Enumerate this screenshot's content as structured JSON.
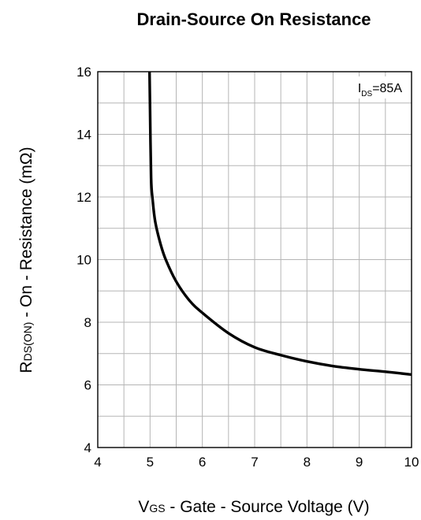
{
  "chart_data": {
    "type": "line",
    "title": "Drain-Source On Resistance",
    "xlabel": {
      "main": "V",
      "sub": "GS",
      "rest": " - Gate - Source Voltage (V)"
    },
    "ylabel": {
      "main": "R",
      "sub": "DS(ON)",
      "rest": " - On - Resistance (mΩ)"
    },
    "xlim": [
      4,
      10
    ],
    "ylim": [
      4,
      16
    ],
    "xticks": [
      "4",
      "5",
      "6",
      "7",
      "8",
      "9",
      "10"
    ],
    "yticks": [
      "4",
      "6",
      "8",
      "10",
      "12",
      "14",
      "16"
    ],
    "grid": true,
    "annotation": {
      "main": "I",
      "sub": "DS",
      "rest": "=85A",
      "position": "top-right"
    },
    "series": [
      {
        "color": "#000000",
        "x": [
          4.99,
          5.0,
          5.02,
          5.05,
          5.1,
          5.2,
          5.3,
          5.5,
          5.75,
          6.0,
          6.5,
          7.0,
          7.5,
          8.0,
          8.5,
          9.0,
          9.5,
          10.0
        ],
        "y": [
          16.0,
          14.8,
          12.6,
          11.9,
          11.2,
          10.5,
          10.0,
          9.3,
          8.7,
          8.3,
          7.65,
          7.2,
          6.95,
          6.75,
          6.6,
          6.5,
          6.42,
          6.33
        ]
      }
    ]
  }
}
